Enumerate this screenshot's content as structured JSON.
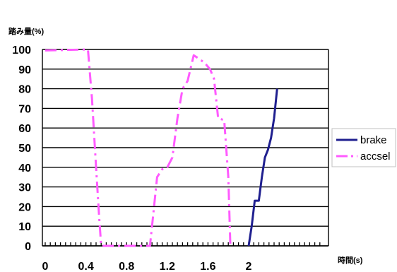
{
  "chart_data": {
    "type": "line",
    "ylabel": "踏み量(%)",
    "xlabel": "時間(s)",
    "xlim": [
      0,
      2.25
    ],
    "ylim": [
      0,
      100
    ],
    "y_ticks": [
      0,
      10,
      20,
      30,
      40,
      50,
      60,
      70,
      80,
      90,
      100
    ],
    "y_tick_labels": [
      "0",
      "10",
      "20",
      "30",
      "40",
      "50",
      "60",
      "70",
      "80",
      "90",
      "100"
    ],
    "x_ticks": [
      0,
      0.4,
      0.8,
      1.2,
      1.6,
      2
    ],
    "x_tick_labels": [
      "0",
      "0.4",
      "0.8",
      "1.2",
      "1.6",
      "2"
    ],
    "grid": "horizontal",
    "legend_position": "right",
    "series": [
      {
        "name": "brake",
        "color": "#1F1F8F",
        "style": "solid",
        "points": [
          {
            "x": 2.0,
            "y": 0
          },
          {
            "x": 2.03,
            "y": 10
          },
          {
            "x": 2.06,
            "y": 23
          },
          {
            "x": 2.1,
            "y": 23
          },
          {
            "x": 2.13,
            "y": 35
          },
          {
            "x": 2.16,
            "y": 45
          },
          {
            "x": 2.19,
            "y": 49
          },
          {
            "x": 2.22,
            "y": 55
          },
          {
            "x": 2.25,
            "y": 65
          },
          {
            "x": 2.28,
            "y": 80
          }
        ]
      },
      {
        "name": "accsel",
        "color": "#FF5AFF",
        "style": "dash-dot",
        "points": [
          {
            "x": 0.0,
            "y": 99.5
          },
          {
            "x": 0.42,
            "y": 100
          },
          {
            "x": 0.46,
            "y": 75
          },
          {
            "x": 0.5,
            "y": 40
          },
          {
            "x": 0.53,
            "y": 15
          },
          {
            "x": 0.55,
            "y": 0
          },
          {
            "x": 1.03,
            "y": 0
          },
          {
            "x": 1.07,
            "y": 20
          },
          {
            "x": 1.1,
            "y": 35
          },
          {
            "x": 1.15,
            "y": 39
          },
          {
            "x": 1.2,
            "y": 40
          },
          {
            "x": 1.25,
            "y": 45
          },
          {
            "x": 1.3,
            "y": 65
          },
          {
            "x": 1.35,
            "y": 80
          },
          {
            "x": 1.4,
            "y": 84
          },
          {
            "x": 1.46,
            "y": 97
          },
          {
            "x": 1.52,
            "y": 95
          },
          {
            "x": 1.57,
            "y": 93
          },
          {
            "x": 1.62,
            "y": 90
          },
          {
            "x": 1.66,
            "y": 85
          },
          {
            "x": 1.7,
            "y": 65
          },
          {
            "x": 1.76,
            "y": 64
          },
          {
            "x": 1.8,
            "y": 35
          },
          {
            "x": 1.82,
            "y": 0
          }
        ]
      }
    ]
  }
}
